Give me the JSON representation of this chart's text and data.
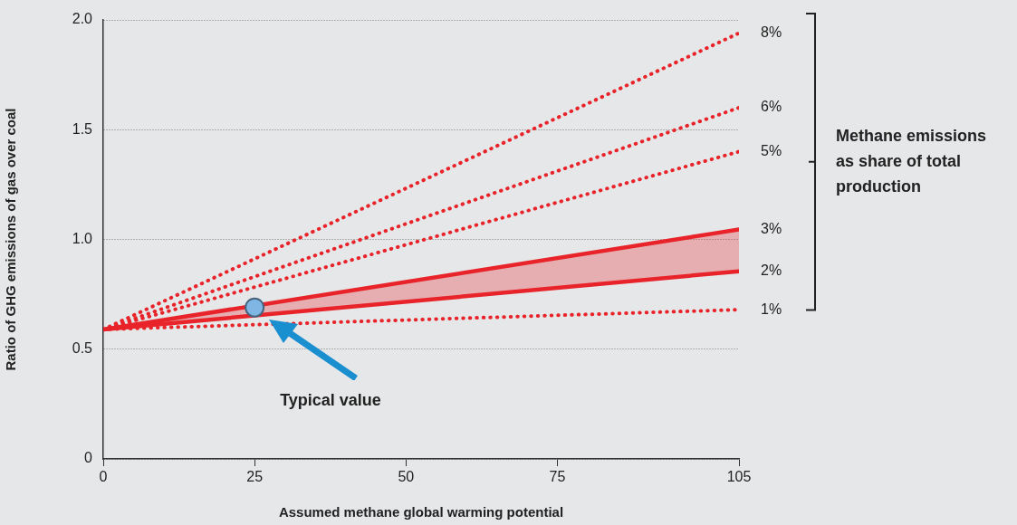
{
  "chart_data": {
    "type": "line",
    "xlabel": "Assumed methane global warming potential",
    "ylabel": "Ratio of GHG emissions of gas over coal",
    "legend_title": "Methane emissions as share of total production",
    "x": [
      0,
      105
    ],
    "xlim": [
      0,
      105
    ],
    "xticks": [
      0,
      25,
      50,
      75,
      105
    ],
    "ylim": [
      0,
      2
    ],
    "yticks": [
      0,
      0.5,
      {
        "value": 1,
        "label": "1.0"
      },
      1.5,
      {
        "value": 2,
        "label": "2.0"
      }
    ],
    "grid": "y",
    "line_style": "dotted",
    "series": [
      {
        "name": "8%",
        "color": "#e8232a",
        "values": [
          0.59,
          1.94
        ]
      },
      {
        "name": "6%",
        "color": "#e8232a",
        "values": [
          0.59,
          1.6
        ]
      },
      {
        "name": "5%",
        "color": "#e8232a",
        "values": [
          0.59,
          1.4
        ]
      },
      {
        "name": "3%",
        "color": "#e8232a",
        "values": [
          0.59,
          1.045
        ],
        "line_style": "solid",
        "lower": [
          0.59,
          0.855
        ],
        "upper": [
          0.59,
          1.045
        ]
      },
      {
        "name": "2%",
        "color": "#e8232a",
        "values": [
          0.59,
          0.855
        ],
        "line_style": "solid"
      },
      {
        "name": "1%",
        "color": "#e8232a",
        "values": [
          0.59,
          0.68
        ]
      },
      {
        "type": "scatter",
        "color": "#7fb6e3",
        "x": [
          25
        ],
        "values": [
          0.69
        ],
        "marker": "circle"
      }
    ],
    "annotations": [
      "Typical value"
    ]
  }
}
